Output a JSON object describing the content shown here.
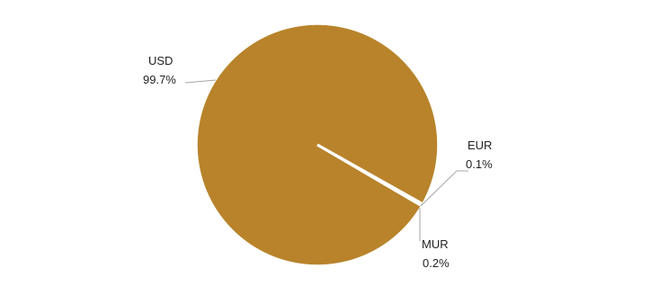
{
  "chart_data": {
    "type": "pie",
    "slices": [
      {
        "name": "USD",
        "value": 99.7,
        "label": "99.7%"
      },
      {
        "name": "EUR",
        "value": 0.1,
        "label": "0.1%"
      },
      {
        "name": "MUR",
        "value": 0.2,
        "label": "0.2%"
      }
    ],
    "colors": {
      "fill": "#B8832A",
      "separator": "#ffffff",
      "leader": "#a6a6a6"
    }
  }
}
